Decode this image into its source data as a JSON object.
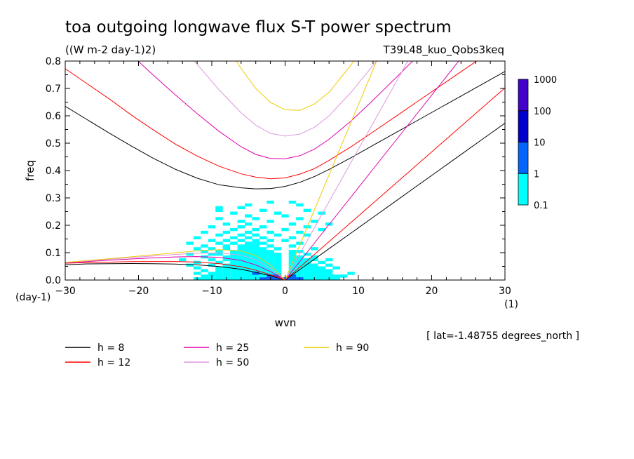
{
  "chart_data": {
    "type": "heatmap",
    "title": "toa outgoing longwave flux S-T power spectrum",
    "subtitle": "((W m-2 day-1)2)",
    "experiment": "T39L48_kuo_Qobs3keq",
    "xlabel": "wvn",
    "ylabel": "freq",
    "x_unit": "(1)",
    "y_unit": "(day-1)",
    "xlim": [
      -30,
      30
    ],
    "ylim": [
      0,
      0.8
    ],
    "x_ticks": [
      -30,
      -20,
      -10,
      0,
      10,
      20,
      30
    ],
    "x_tick_labels": [
      "-30",
      "-20",
      "-10",
      "0",
      "10",
      "20",
      "30"
    ],
    "y_ticks": [
      0,
      0.1,
      0.2,
      0.3,
      0.4,
      0.5,
      0.6,
      0.7,
      0.8
    ],
    "y_tick_labels": [
      "0.0",
      "0.1",
      "0.2",
      "0.3",
      "0.4",
      "0.5",
      "0.6",
      "0.7",
      "0.8"
    ],
    "annotation": "[ lat=-1.48755 degrees_north ]",
    "colorbar": {
      "levels": [
        "0.1",
        "1",
        "10",
        "100",
        "1000"
      ],
      "colors": [
        "#00ffff",
        "#0066ff",
        "#0000cc",
        "#4400cc"
      ]
    },
    "spectrum_cells": [
      [
        -12,
        0.005
      ],
      [
        -11,
        0.005
      ],
      [
        -10,
        0.005
      ],
      [
        -9,
        0.005
      ],
      [
        -8,
        0.005
      ],
      [
        -7,
        0.005
      ],
      [
        -6,
        0.005
      ],
      [
        -5,
        0.005
      ],
      [
        -4,
        0.005
      ],
      [
        -3,
        0.005
      ],
      [
        -2,
        0.005
      ],
      [
        -1,
        0.005
      ],
      [
        1,
        0.005
      ],
      [
        2,
        0.005
      ],
      [
        3,
        0.005
      ],
      [
        4,
        0.005
      ],
      [
        5,
        0.005
      ],
      [
        6,
        0.005
      ],
      [
        7,
        0.005
      ],
      [
        -11,
        0.015
      ],
      [
        -10,
        0.015
      ],
      [
        -9,
        0.015
      ],
      [
        -8,
        0.015
      ],
      [
        -7,
        0.015
      ],
      [
        -6,
        0.015
      ],
      [
        -5,
        0.015
      ],
      [
        -4,
        0.015
      ],
      [
        -3,
        0.015
      ],
      [
        -2,
        0.015
      ],
      [
        -1,
        0.015
      ],
      [
        1,
        0.015
      ],
      [
        2,
        0.015
      ],
      [
        3,
        0.015
      ],
      [
        4,
        0.015
      ],
      [
        5,
        0.015
      ],
      [
        6,
        0.015
      ],
      [
        7,
        0.015
      ],
      [
        8,
        0.015
      ],
      [
        -12,
        0.025
      ],
      [
        -10,
        0.025
      ],
      [
        -9,
        0.025
      ],
      [
        -8,
        0.025
      ],
      [
        -7,
        0.025
      ],
      [
        -6,
        0.025
      ],
      [
        -5,
        0.025
      ],
      [
        -4,
        0.025
      ],
      [
        -3,
        0.025
      ],
      [
        -2,
        0.025
      ],
      [
        -1,
        0.025
      ],
      [
        1,
        0.025
      ],
      [
        2,
        0.025
      ],
      [
        3,
        0.025
      ],
      [
        4,
        0.025
      ],
      [
        5,
        0.025
      ],
      [
        6,
        0.025
      ],
      [
        9,
        0.025
      ],
      [
        -11,
        0.035
      ],
      [
        -9,
        0.035
      ],
      [
        -8,
        0.035
      ],
      [
        -7,
        0.035
      ],
      [
        -6,
        0.035
      ],
      [
        -5,
        0.035
      ],
      [
        -4,
        0.035
      ],
      [
        -3,
        0.035
      ],
      [
        -2,
        0.035
      ],
      [
        -1,
        0.035
      ],
      [
        1,
        0.035
      ],
      [
        2,
        0.035
      ],
      [
        3,
        0.035
      ],
      [
        4,
        0.035
      ],
      [
        5,
        0.035
      ],
      [
        6,
        0.035
      ],
      [
        -12,
        0.045
      ],
      [
        -9,
        0.045
      ],
      [
        -8,
        0.045
      ],
      [
        -7,
        0.045
      ],
      [
        -6,
        0.045
      ],
      [
        -5,
        0.045
      ],
      [
        -4,
        0.045
      ],
      [
        -3,
        0.045
      ],
      [
        -2,
        0.045
      ],
      [
        -1,
        0.045
      ],
      [
        1,
        0.045
      ],
      [
        2,
        0.045
      ],
      [
        3,
        0.045
      ],
      [
        4,
        0.045
      ],
      [
        5,
        0.045
      ],
      [
        7,
        0.045
      ],
      [
        -13,
        0.055
      ],
      [
        -10,
        0.055
      ],
      [
        -8,
        0.055
      ],
      [
        -7,
        0.055
      ],
      [
        -6,
        0.055
      ],
      [
        -5,
        0.055
      ],
      [
        -4,
        0.055
      ],
      [
        -3,
        0.055
      ],
      [
        -2,
        0.055
      ],
      [
        -1,
        0.055
      ],
      [
        1,
        0.055
      ],
      [
        2,
        0.055
      ],
      [
        3,
        0.055
      ],
      [
        4,
        0.055
      ],
      [
        6,
        0.055
      ],
      [
        -12,
        0.065
      ],
      [
        -9,
        0.065
      ],
      [
        -7,
        0.065
      ],
      [
        -6,
        0.065
      ],
      [
        -5,
        0.065
      ],
      [
        -4,
        0.065
      ],
      [
        -3,
        0.065
      ],
      [
        -2,
        0.065
      ],
      [
        -1,
        0.065
      ],
      [
        1,
        0.065
      ],
      [
        2,
        0.065
      ],
      [
        3,
        0.065
      ],
      [
        5,
        0.065
      ],
      [
        -14,
        0.075
      ],
      [
        -10,
        0.075
      ],
      [
        -8,
        0.075
      ],
      [
        -7,
        0.075
      ],
      [
        -6,
        0.075
      ],
      [
        -5,
        0.075
      ],
      [
        -4,
        0.075
      ],
      [
        -3,
        0.075
      ],
      [
        -2,
        0.075
      ],
      [
        -1,
        0.075
      ],
      [
        1,
        0.075
      ],
      [
        2,
        0.075
      ],
      [
        3,
        0.075
      ],
      [
        4,
        0.075
      ],
      [
        6,
        0.075
      ],
      [
        -11,
        0.085
      ],
      [
        -8,
        0.085
      ],
      [
        -7,
        0.085
      ],
      [
        -6,
        0.085
      ],
      [
        -5,
        0.085
      ],
      [
        -4,
        0.085
      ],
      [
        -3,
        0.085
      ],
      [
        -2,
        0.085
      ],
      [
        -1,
        0.085
      ],
      [
        1,
        0.085
      ],
      [
        2,
        0.085
      ],
      [
        4,
        0.085
      ],
      [
        -13,
        0.095
      ],
      [
        -10,
        0.095
      ],
      [
        -9,
        0.095
      ],
      [
        -7,
        0.095
      ],
      [
        -6,
        0.095
      ],
      [
        -5,
        0.095
      ],
      [
        -4,
        0.095
      ],
      [
        -3,
        0.095
      ],
      [
        -2,
        0.095
      ],
      [
        -1,
        0.095
      ],
      [
        1,
        0.095
      ],
      [
        3,
        0.095
      ],
      [
        -11,
        0.105
      ],
      [
        -9,
        0.105
      ],
      [
        -7,
        0.105
      ],
      [
        -6,
        0.105
      ],
      [
        -5,
        0.105
      ],
      [
        -4,
        0.105
      ],
      [
        -3,
        0.105
      ],
      [
        -2,
        0.105
      ],
      [
        1,
        0.105
      ],
      [
        2,
        0.105
      ],
      [
        -12,
        0.115
      ],
      [
        -10,
        0.115
      ],
      [
        -8,
        0.115
      ],
      [
        -6,
        0.115
      ],
      [
        -5,
        0.115
      ],
      [
        -4,
        0.115
      ],
      [
        -3,
        0.115
      ],
      [
        -1,
        0.115
      ],
      [
        4,
        0.115
      ],
      [
        -11,
        0.125
      ],
      [
        -8,
        0.125
      ],
      [
        -6,
        0.125
      ],
      [
        -5,
        0.125
      ],
      [
        -4,
        0.125
      ],
      [
        -2,
        0.125
      ],
      [
        1,
        0.125
      ],
      [
        -13,
        0.135
      ],
      [
        -9,
        0.135
      ],
      [
        -7,
        0.135
      ],
      [
        -5,
        0.135
      ],
      [
        -4,
        0.135
      ],
      [
        -3,
        0.135
      ],
      [
        2,
        0.135
      ],
      [
        -10,
        0.145
      ],
      [
        -8,
        0.145
      ],
      [
        -6,
        0.145
      ],
      [
        -4,
        0.145
      ],
      [
        -2,
        0.145
      ],
      [
        0,
        0.145
      ],
      [
        -12,
        0.155
      ],
      [
        -7,
        0.155
      ],
      [
        -5,
        0.155
      ],
      [
        -3,
        0.155
      ],
      [
        1,
        0.155
      ],
      [
        -9,
        0.165
      ],
      [
        -6,
        0.165
      ],
      [
        -4,
        0.165
      ],
      [
        -1,
        0.165
      ],
      [
        3,
        0.165
      ],
      [
        -11,
        0.175
      ],
      [
        -8,
        0.175
      ],
      [
        -5,
        0.175
      ],
      [
        -2,
        0.175
      ],
      [
        2,
        0.175
      ],
      [
        -7,
        0.185
      ],
      [
        -4,
        0.185
      ],
      [
        0,
        0.185
      ],
      [
        5,
        0.185
      ],
      [
        -10,
        0.195
      ],
      [
        -6,
        0.195
      ],
      [
        -3,
        0.195
      ],
      [
        3,
        0.195
      ],
      [
        -8,
        0.205
      ],
      [
        -5,
        0.205
      ],
      [
        1,
        0.205
      ],
      [
        6,
        0.205
      ],
      [
        -6,
        0.215
      ],
      [
        -2,
        0.215
      ],
      [
        4,
        0.215
      ],
      [
        -9,
        0.225
      ],
      [
        -4,
        0.225
      ],
      [
        2,
        0.225
      ],
      [
        -5,
        0.235
      ],
      [
        0,
        0.235
      ],
      [
        -7,
        0.245
      ],
      [
        -1,
        0.245
      ],
      [
        5,
        0.245
      ],
      [
        -3,
        0.255
      ],
      [
        3,
        0.255
      ],
      [
        -5,
        0.275
      ],
      [
        2,
        0.275
      ],
      [
        -9,
        0.255
      ],
      [
        -9,
        0.265
      ],
      [
        -6,
        0.265
      ],
      [
        -2,
        0.285
      ],
      [
        1,
        0.285
      ]
    ],
    "spectrum_cells_strong": [
      [
        -3,
        0.005
      ],
      [
        -2,
        0.005
      ],
      [
        -1,
        0.005
      ],
      [
        1,
        0.005
      ],
      [
        2,
        0.005
      ],
      [
        -2,
        0.015
      ],
      [
        -1,
        0.015
      ],
      [
        1,
        0.015
      ],
      [
        -4,
        0.025
      ],
      [
        0,
        0.005
      ]
    ],
    "dispersion_x": [
      -30,
      -27,
      -24,
      -21,
      -18,
      -15,
      -12,
      -9,
      -6,
      -4,
      -2,
      0,
      2,
      4,
      6,
      9,
      12,
      15,
      18,
      21,
      24,
      27,
      30
    ],
    "series": [
      {
        "name": "h =  8",
        "color": "#000000",
        "lower": [
          0.0557,
          0.0591,
          0.0594,
          0.0602,
          0.0596,
          0.0582,
          0.0553,
          0.0496,
          0.0392,
          0.0283,
          0.0156,
          0.0
        ],
        "upper": [
          0.635,
          0.586,
          0.537,
          0.49,
          0.445,
          0.405,
          0.372,
          0.348,
          0.337,
          0.333,
          0.334,
          0.342,
          0.357,
          0.378,
          0.404,
          0.447,
          0.492,
          0.537,
          0.582,
          0.627,
          0.672,
          0.717,
          0.762
        ],
        "kelvin": [
          0.0,
          0.0573,
          0.1146,
          0.1719,
          0.2292,
          0.2865,
          0.3438,
          0.4011,
          0.4584,
          0.5157,
          0.573
        ]
      },
      {
        "name": "h = 12",
        "color": "#ff0000",
        "lower": [
          0.0615,
          0.0635,
          0.0655,
          0.0671,
          0.0678,
          0.0676,
          0.0656,
          0.0601,
          0.0488,
          0.0358,
          0.0195,
          0.0
        ],
        "upper": [
          0.772,
          0.717,
          0.662,
          0.603,
          0.549,
          0.497,
          0.453,
          0.416,
          0.388,
          0.376,
          0.37,
          0.373,
          0.387,
          0.407,
          0.437,
          0.487,
          0.541,
          0.596,
          0.651,
          0.706,
          0.761,
          0.816,
          0.871
        ],
        "kelvin": [
          0.0,
          0.0702,
          0.1404,
          0.2106,
          0.2808,
          0.351,
          0.4212,
          0.4914,
          0.5616,
          0.6318,
          0.702
        ]
      },
      {
        "name": "h = 25",
        "color": "#dd00aa",
        "lower": [
          0.0623,
          0.0675,
          0.0723,
          0.0769,
          0.0811,
          0.0843,
          0.0856,
          0.083,
          0.0719,
          0.0552,
          0.0312,
          0.0
        ],
        "upper": [
          1.044,
          0.97,
          0.897,
          0.823,
          0.749,
          0.677,
          0.608,
          0.543,
          0.487,
          0.459,
          0.444,
          0.443,
          0.454,
          0.478,
          0.514,
          0.581,
          0.657,
          0.736,
          0.816,
          0.897,
          0.978,
          1.059,
          1.14
        ],
        "kelvin": [
          0.0,
          0.1013,
          0.2026,
          0.3039,
          0.4052,
          0.5065,
          0.6078,
          0.7091,
          0.8104,
          0.9117,
          1.013
        ]
      },
      {
        "name": "h = 50",
        "color": "#dd99dd",
        "lower": [
          0.0642,
          0.0701,
          0.0759,
          0.082,
          0.0879,
          0.0933,
          0.0979,
          0.0991,
          0.0911,
          0.0735,
          0.0432,
          0.0
        ],
        "upper": [
          1.379,
          1.279,
          1.179,
          1.079,
          0.98,
          0.883,
          0.788,
          0.695,
          0.611,
          0.566,
          0.536,
          0.526,
          0.533,
          0.558,
          0.6,
          0.686,
          0.784,
          0.888,
          0.996,
          1.105,
          1.215,
          1.326,
          1.437
        ],
        "kelvin": [
          0.0,
          0.1433,
          0.2866,
          0.4299,
          0.5732,
          0.7165,
          0.8598,
          1.0031,
          1.1464,
          1.2897,
          1.433
        ]
      },
      {
        "name": "h = 90",
        "color": "#eecc00",
        "lower": [
          0.0646,
          0.0712,
          0.0779,
          0.0849,
          0.0924,
          0.0994,
          0.1064,
          0.1108,
          0.1065,
          0.0893,
          0.0552,
          0.0
        ],
        "upper": [
          1.816,
          1.683,
          1.549,
          1.416,
          1.284,
          1.152,
          1.022,
          0.895,
          0.773,
          0.7,
          0.649,
          0.622,
          0.62,
          0.643,
          0.686,
          0.786,
          0.905,
          1.034,
          1.169,
          1.306,
          1.445,
          1.585,
          1.725
        ],
        "kelvin": [
          0.0,
          0.1922,
          0.3844,
          0.5766,
          0.7688,
          0.961,
          1.1532,
          1.3454,
          1.5376,
          1.7298,
          1.922
        ]
      }
    ]
  }
}
